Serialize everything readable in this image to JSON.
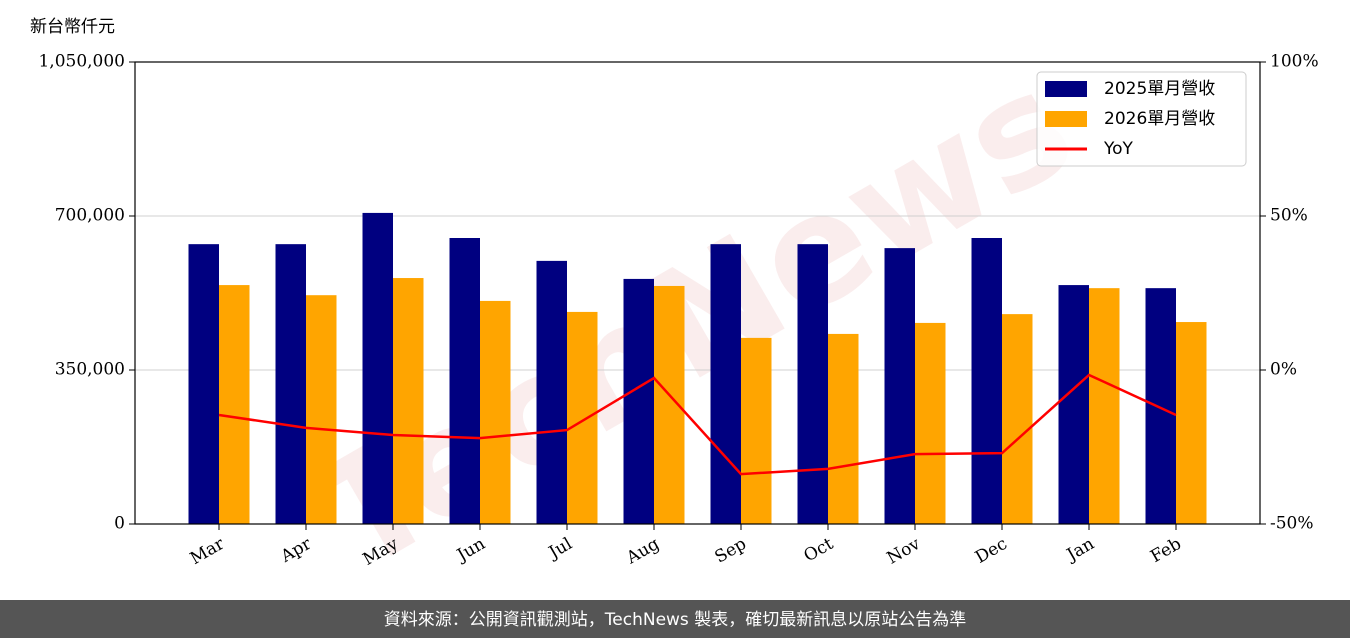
{
  "chart_data": {
    "type": "bar",
    "y_label": "新台幣仟元",
    "watermark": "TechNews",
    "source": "資料來源：公開資訊觀測站，TechNews 製表，確切最新訊息以原站公告為準",
    "categories": [
      "Mar",
      "Apr",
      "May",
      "Jun",
      "Jul",
      "Aug",
      "Sep",
      "Oct",
      "Nov",
      "Dec",
      "Jan",
      "Feb"
    ],
    "series": [
      {
        "name": "2025單月營收",
        "color": "#000080",
        "values": [
          636000,
          636000,
          707000,
          650000,
          598000,
          557000,
          636000,
          636000,
          627000,
          650000,
          543000,
          536000
        ]
      },
      {
        "name": "2026單月營收",
        "color": "#ffa500",
        "values": [
          543000,
          520000,
          559000,
          507000,
          482000,
          541000,
          423000,
          432000,
          457000,
          477000,
          536000,
          459000
        ]
      },
      {
        "name": "YoY",
        "color": "#ff0000",
        "type": "line",
        "axis": "y2",
        "values": [
          -14.6,
          -18.8,
          -21.1,
          -22.1,
          -19.5,
          -2.6,
          -33.8,
          -32.1,
          -27.3,
          -27.0,
          -1.6,
          -14.6
        ]
      }
    ],
    "ylim": [
      0,
      1050000
    ],
    "yticks": [
      {
        "value": 0,
        "label": "0"
      },
      {
        "value": 350000,
        "label": "350,000"
      },
      {
        "value": 700000,
        "label": "700,000"
      },
      {
        "value": 1050000,
        "label": "1,050,000"
      }
    ],
    "y2lim": [
      -50,
      100
    ],
    "y2ticks": [
      {
        "value": -50,
        "label": "-50%"
      },
      {
        "value": 0,
        "label": "0%"
      },
      {
        "value": 50,
        "label": "50%"
      },
      {
        "value": 100,
        "label": "100%"
      }
    ],
    "grid": true,
    "legend": "upper right"
  }
}
